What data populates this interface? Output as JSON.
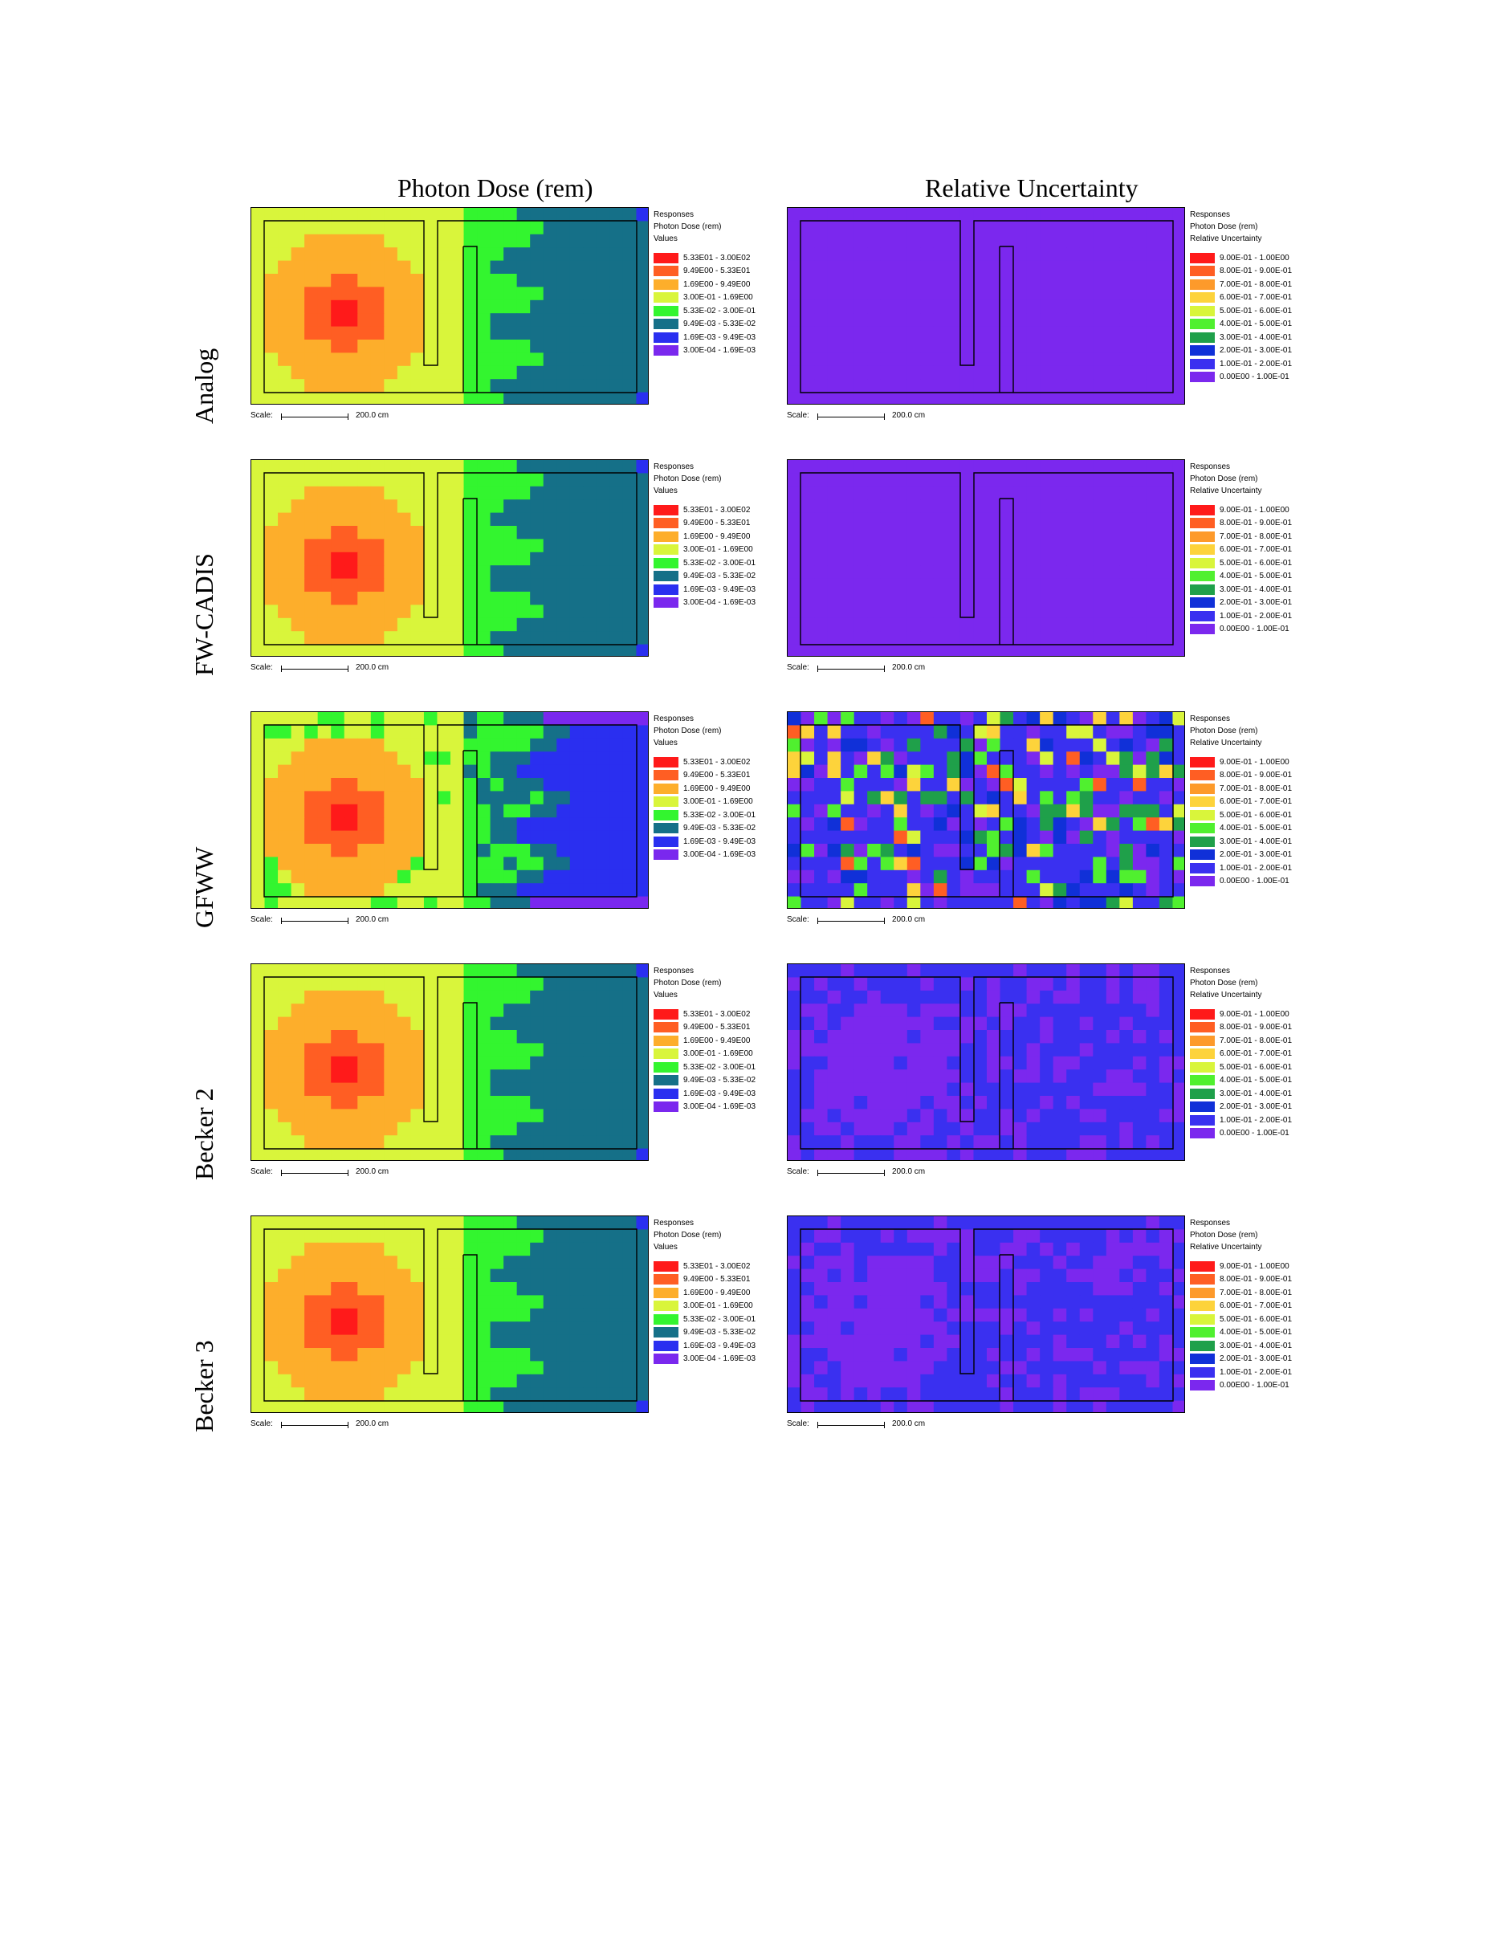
{
  "columns": {
    "dose_title": "Photon Dose (rem)",
    "unc_title": "Relative Uncertainty"
  },
  "rows": [
    {
      "label": "Analog",
      "mode": "analog"
    },
    {
      "label": "FW-CADIS",
      "mode": "fwcadis"
    },
    {
      "label": "GFWW",
      "mode": "gfww"
    },
    {
      "label": "Becker 2",
      "mode": "becker2"
    },
    {
      "label": "Becker 3",
      "mode": "becker3"
    }
  ],
  "dose_legend": {
    "line1": "Responses",
    "line2": "Photon Dose (rem)",
    "line3": "Values",
    "entries": [
      {
        "label": "5.33E01 - 3.00E02",
        "color": "#ff1a1a"
      },
      {
        "label": "9.49E00 - 5.33E01",
        "color": "#ff5e23"
      },
      {
        "label": "1.69E00 - 9.49E00",
        "color": "#fdae2b"
      },
      {
        "label": "3.00E-01 - 1.69E00",
        "color": "#d9f53b"
      },
      {
        "label": "5.33E-02 - 3.00E-01",
        "color": "#33f52f"
      },
      {
        "label": "9.49E-03 - 5.33E-02",
        "color": "#157088"
      },
      {
        "label": "1.69E-03 - 9.49E-03",
        "color": "#2a2ff0"
      },
      {
        "label": "3.00E-04 - 1.69E-03",
        "color": "#7a28ee"
      }
    ]
  },
  "unc_legend": {
    "line1": "Responses",
    "line2": "Photon Dose (rem)",
    "line3": "Relative Uncertainty",
    "entries": [
      {
        "label": "9.00E-01 - 1.00E00",
        "color": "#ff1a1a"
      },
      {
        "label": "8.00E-01 - 9.00E-01",
        "color": "#ff5e23"
      },
      {
        "label": "7.00E-01 - 8.00E-01",
        "color": "#fd9a2b"
      },
      {
        "label": "6.00E-01 - 7.00E-01",
        "color": "#fdd33b"
      },
      {
        "label": "5.00E-01 - 6.00E-01",
        "color": "#d9f53b"
      },
      {
        "label": "4.00E-01 - 5.00E-01",
        "color": "#50f02f"
      },
      {
        "label": "3.00E-01 - 4.00E-01",
        "color": "#1fa04a"
      },
      {
        "label": "2.00E-01 - 3.00E-01",
        "color": "#1030d8"
      },
      {
        "label": "1.00E-01 - 2.00E-01",
        "color": "#3a30f0"
      },
      {
        "label": "0.00E00 - 1.00E-01",
        "color": "#7b28ee"
      }
    ]
  },
  "scale": {
    "label": "Scale:",
    "value": "200.0 cm"
  }
}
